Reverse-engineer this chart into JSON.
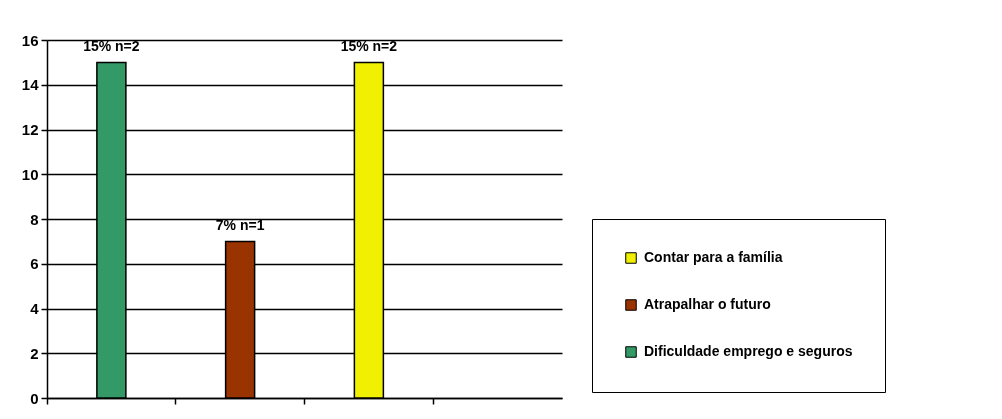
{
  "chart_data": {
    "type": "bar",
    "categories": [
      null,
      null,
      null,
      null
    ],
    "series": [
      {
        "name": "Contar para a família",
        "color": "#f0f000",
        "values": [
          null,
          null,
          15,
          null
        ],
        "value_labels": [
          null,
          null,
          "15% n=2",
          null
        ]
      },
      {
        "name": "Atrapalhar o futuro",
        "color": "#993300",
        "values": [
          null,
          7,
          null,
          null
        ],
        "value_labels": [
          null,
          "7% n=1",
          null,
          null
        ]
      },
      {
        "name": "Dificuldade emprego e seguros",
        "color": "#339966",
        "values": [
          15,
          null,
          null,
          null
        ],
        "value_labels": [
          "15% n=2",
          null,
          null,
          null
        ]
      }
    ],
    "ylim": [
      0,
      16
    ],
    "yticks": [
      0,
      2,
      4,
      6,
      8,
      10,
      12,
      14,
      16
    ],
    "grid": "y",
    "legend": "right",
    "tick_labels": "y"
  }
}
